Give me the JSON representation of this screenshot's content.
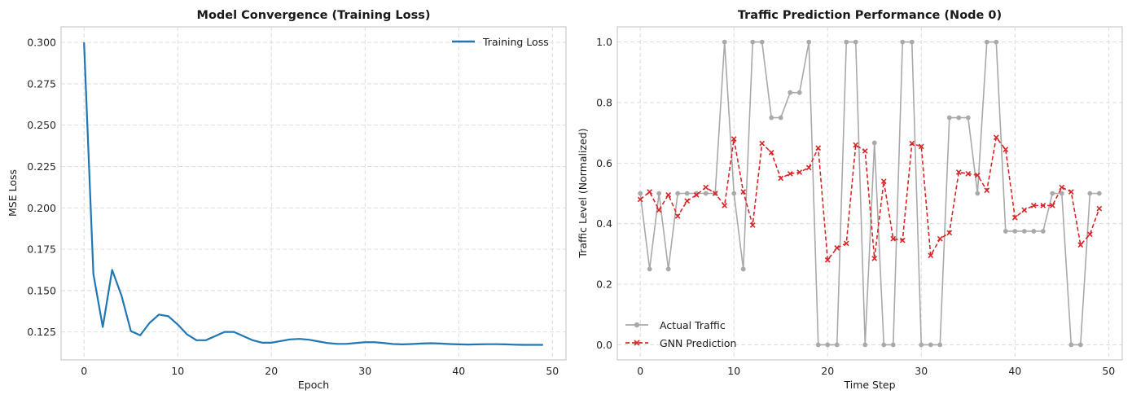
{
  "chart_data": [
    {
      "type": "line",
      "title": "Model Convergence (Training Loss)",
      "xlabel": "Epoch",
      "ylabel": "MSE Loss",
      "xlim": [
        -2.45,
        51.45
      ],
      "ylim": [
        0.1081,
        0.3094
      ],
      "xticks": [
        0,
        10,
        20,
        30,
        40,
        50
      ],
      "xtick_labels": [
        "0",
        "10",
        "20",
        "30",
        "40",
        "50"
      ],
      "yticks": [
        0.125,
        0.15,
        0.175,
        0.2,
        0.225,
        0.25,
        0.275,
        0.3
      ],
      "ytick_labels": [
        "0.125",
        "0.150",
        "0.175",
        "0.200",
        "0.225",
        "0.250",
        "0.275",
        "0.300"
      ],
      "grid": true,
      "legend_position": "upper right",
      "series": [
        {
          "name": "Training Loss",
          "color": "#1f77b4",
          "x": [
            0,
            1,
            2,
            3,
            4,
            5,
            6,
            7,
            8,
            9,
            10,
            11,
            12,
            13,
            14,
            15,
            16,
            17,
            18,
            19,
            20,
            21,
            22,
            23,
            24,
            25,
            26,
            27,
            28,
            29,
            30,
            31,
            32,
            33,
            34,
            35,
            36,
            37,
            38,
            39,
            40,
            41,
            42,
            43,
            44,
            45,
            46,
            47,
            48,
            49
          ],
          "values": [
            0.3,
            0.16,
            0.128,
            0.1625,
            0.147,
            0.1255,
            0.123,
            0.1305,
            0.1355,
            0.1345,
            0.1295,
            0.1235,
            0.12,
            0.12,
            0.1225,
            0.125,
            0.125,
            0.1225,
            0.12,
            0.1185,
            0.1185,
            0.1195,
            0.1205,
            0.1208,
            0.1203,
            0.1193,
            0.1183,
            0.1178,
            0.1178,
            0.1183,
            0.1188,
            0.1188,
            0.1183,
            0.1177,
            0.1175,
            0.1177,
            0.118,
            0.1182,
            0.118,
            0.1177,
            0.1175,
            0.1174,
            0.1175,
            0.1176,
            0.1176,
            0.1175,
            0.1173,
            0.1172,
            0.1172,
            0.1172
          ]
        }
      ]
    },
    {
      "type": "line",
      "title": "Traffic Prediction Performance (Node 0)",
      "xlabel": "Time Step",
      "ylabel": "Traffic Level (Normalized)",
      "xlim": [
        -2.45,
        51.45
      ],
      "ylim": [
        -0.05,
        1.05
      ],
      "xticks": [
        0,
        10,
        20,
        30,
        40,
        50
      ],
      "xtick_labels": [
        "0",
        "10",
        "20",
        "30",
        "40",
        "50"
      ],
      "yticks": [
        0,
        0.2,
        0.4,
        0.6,
        0.8,
        1
      ],
      "ytick_labels": [
        "0.0",
        "0.2",
        "0.4",
        "0.6",
        "0.8",
        "1.0"
      ],
      "grid": true,
      "legend_position": "lower left",
      "series": [
        {
          "name": "Actual Traffic",
          "color": "#a9a9a9",
          "marker": "circle",
          "x": [
            0,
            1,
            2,
            3,
            4,
            5,
            6,
            7,
            8,
            9,
            10,
            11,
            12,
            13,
            14,
            15,
            16,
            17,
            18,
            19,
            20,
            21,
            22,
            23,
            24,
            25,
            26,
            27,
            28,
            29,
            30,
            31,
            32,
            33,
            34,
            35,
            36,
            37,
            38,
            39,
            40,
            41,
            42,
            43,
            44,
            45,
            46,
            47,
            48,
            49
          ],
          "values": [
            0.5,
            0.25,
            0.5,
            0.25,
            0.5,
            0.5,
            0.5,
            0.5,
            0.5,
            1.0,
            0.5,
            0.25,
            1.0,
            1.0,
            0.75,
            0.75,
            0.833,
            0.833,
            1.0,
            0.0,
            0.0,
            0.0,
            1.0,
            1.0,
            0.0,
            0.667,
            0.0,
            0.0,
            1.0,
            1.0,
            0.0,
            0.0,
            0.0,
            0.75,
            0.75,
            0.75,
            0.5,
            1.0,
            1.0,
            0.375,
            0.375,
            0.375,
            0.375,
            0.375,
            0.5,
            0.5,
            0.0,
            0.0,
            0.5,
            0.5
          ]
        },
        {
          "name": "GNN Prediction",
          "color": "#d62728",
          "marker": "x",
          "x": [
            0,
            1,
            2,
            3,
            4,
            5,
            6,
            7,
            8,
            9,
            10,
            11,
            12,
            13,
            14,
            15,
            16,
            17,
            18,
            19,
            20,
            21,
            22,
            23,
            24,
            25,
            26,
            27,
            28,
            29,
            30,
            31,
            32,
            33,
            34,
            35,
            36,
            37,
            38,
            39,
            40,
            41,
            42,
            43,
            44,
            45,
            46,
            47,
            48,
            49
          ],
          "values": [
            0.48,
            0.505,
            0.445,
            0.495,
            0.425,
            0.475,
            0.495,
            0.52,
            0.5,
            0.46,
            0.68,
            0.505,
            0.395,
            0.665,
            0.635,
            0.55,
            0.565,
            0.57,
            0.585,
            0.65,
            0.28,
            0.32,
            0.335,
            0.66,
            0.64,
            0.285,
            0.54,
            0.35,
            0.345,
            0.665,
            0.655,
            0.295,
            0.35,
            0.37,
            0.57,
            0.565,
            0.56,
            0.51,
            0.685,
            0.645,
            0.42,
            0.445,
            0.46,
            0.46,
            0.46,
            0.52,
            0.505,
            0.33,
            0.365,
            0.45
          ]
        }
      ]
    }
  ]
}
